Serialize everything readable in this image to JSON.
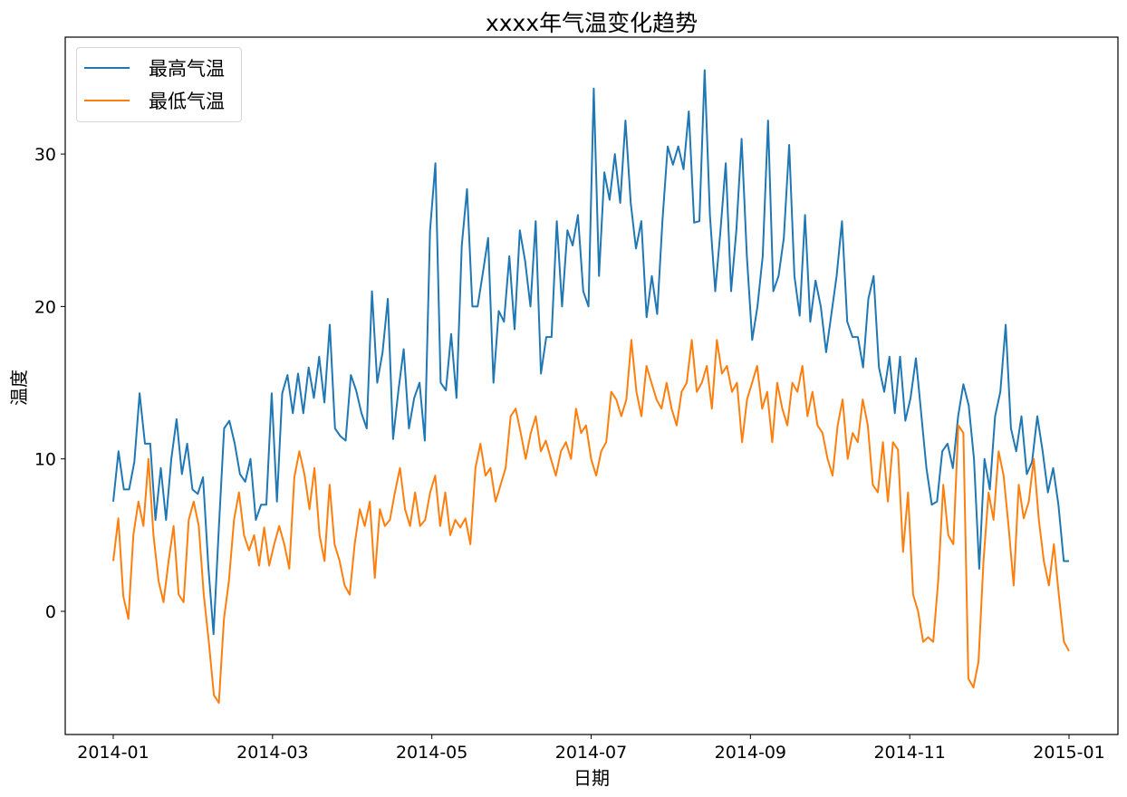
{
  "chart_data": {
    "type": "line",
    "title": "xxxx年气温变化趋势",
    "xlabel": "日期",
    "ylabel": "温度",
    "x_range": [
      "2014-01-01",
      "2014-12-31"
    ],
    "xticks": [
      "2014-01",
      "2014-03",
      "2014-05",
      "2014-07",
      "2014-09",
      "2014-11",
      "2015-01"
    ],
    "yticks": [
      0,
      10,
      20,
      30
    ],
    "ylim": [
      -8.1,
      37.7
    ],
    "grid": false,
    "legend_position": "upper left",
    "series": [
      {
        "name": "最高气温",
        "color": "#1f77b4",
        "values": [
          7.2,
          10.5,
          8,
          8,
          9.8,
          14.3,
          11,
          11,
          6,
          9.4,
          6,
          10,
          12.6,
          9,
          11,
          8,
          7.7,
          8.8,
          3,
          -1.5,
          5.5,
          12,
          12.5,
          11,
          9,
          8.5,
          10,
          6,
          7,
          7,
          14.3,
          7.2,
          14.3,
          15.5,
          13,
          15.6,
          13,
          16,
          14,
          16.7,
          13.7,
          18.8,
          12,
          11.5,
          11.2,
          15.5,
          14.5,
          13,
          12,
          21,
          15,
          17,
          20.5,
          11.3,
          14.5,
          17.2,
          12,
          14,
          15,
          11.2,
          25,
          29.4,
          15,
          14.5,
          18.2,
          14,
          24,
          27.7,
          20,
          20,
          22.2,
          24.5,
          15,
          19.7,
          19,
          23.3,
          18.5,
          25,
          23,
          20,
          25.6,
          15.6,
          18,
          18,
          25.6,
          20,
          25,
          24,
          26,
          21,
          20,
          34.3,
          22,
          28.8,
          27,
          30,
          26.8,
          32.2,
          26.8,
          23.8,
          25.6,
          19.3,
          22,
          19.5,
          25.6,
          30.5,
          29.3,
          30.5,
          29,
          32.8,
          25.5,
          25.6,
          35.5,
          26,
          21,
          25,
          29.4,
          21,
          25,
          31,
          23.3,
          17.8,
          20,
          23.3,
          32.2,
          21,
          22,
          24.5,
          30.6,
          22,
          19.4,
          26,
          19,
          21.7,
          20,
          17,
          19.5,
          22,
          25.6,
          19,
          18,
          18,
          16,
          20.5,
          22,
          16,
          14.4,
          16.7,
          13,
          16.7,
          12.5,
          14,
          16.6,
          13,
          9.4,
          7,
          7.2,
          10.5,
          11,
          9.4,
          12.8,
          14.9,
          13.5,
          10,
          2.8,
          10,
          8,
          12.8,
          14.4,
          18.8,
          12,
          10.5,
          12.8,
          9,
          9.8,
          12.8,
          10.5,
          7.8,
          9.4,
          7,
          3.3,
          3.3
        ]
      },
      {
        "name": "最低气温",
        "color": "#ff7f0e",
        "values": [
          3.3,
          6.1,
          1,
          -0.5,
          5,
          7.2,
          5.6,
          10,
          5,
          2,
          0.6,
          3.3,
          5.6,
          1.1,
          0.6,
          6,
          7.2,
          5.6,
          1.1,
          -2,
          -5.5,
          -6,
          -0.5,
          2,
          6,
          7.8,
          5,
          4,
          5,
          3,
          5.5,
          3,
          4.4,
          5.6,
          4.4,
          2.8,
          8.8,
          10.5,
          9,
          6.7,
          9.4,
          5,
          3.3,
          8.3,
          4.4,
          3.3,
          1.7,
          1.1,
          4.4,
          6.7,
          5.6,
          7.2,
          2.2,
          6.7,
          5.6,
          6,
          7.8,
          9.4,
          6.7,
          5.6,
          7.8,
          5.6,
          6,
          7.8,
          8.9,
          5.6,
          7.8,
          5,
          6,
          5.5,
          6.1,
          4.4,
          9.4,
          11,
          8.9,
          9.4,
          7.2,
          8.3,
          9.4,
          12.8,
          13.3,
          11.7,
          10,
          11.7,
          12.8,
          10.5,
          11.2,
          10,
          8.9,
          10.5,
          11.1,
          10,
          13.3,
          11.7,
          12.2,
          10,
          8.9,
          10.5,
          11.1,
          14.4,
          13.9,
          12.8,
          13.9,
          17.8,
          14.4,
          12.8,
          16.1,
          15,
          13.9,
          13.3,
          15,
          13.3,
          12.2,
          14.4,
          15,
          17.8,
          14.4,
          15,
          16.1,
          13.3,
          17.8,
          15.6,
          16.1,
          14.4,
          15,
          11.1,
          13.9,
          15,
          16.1,
          13.3,
          14.4,
          11.1,
          15,
          13.3,
          12.2,
          15,
          14.4,
          16.1,
          12.8,
          14.4,
          12.2,
          11.7,
          10,
          8.9,
          12.2,
          13.9,
          10,
          11.7,
          11.1,
          13.9,
          12.2,
          8.3,
          7.8,
          11.1,
          7.2,
          11.1,
          10.6,
          3.9,
          7.8,
          1.1,
          0,
          -2,
          -1.7,
          -2,
          2,
          8.3,
          5,
          4.4,
          12.2,
          11.7,
          -4.4,
          -5,
          -3.3,
          3.3,
          7.8,
          6,
          10.5,
          8.9,
          5.5,
          1.7,
          8.3,
          6.1,
          7.2,
          10,
          6,
          3.3,
          1.7,
          4.4,
          1,
          -2,
          -2.6
        ]
      }
    ]
  },
  "legend": {
    "items": [
      {
        "label": "最高气温",
        "color": "#1f77b4"
      },
      {
        "label": "最低气温",
        "color": "#ff7f0e"
      }
    ]
  },
  "axes": {
    "x_tick_labels": [
      "2014-01",
      "2014-03",
      "2014-05",
      "2014-07",
      "2014-09",
      "2014-11",
      "2015-01"
    ],
    "y_tick_labels": [
      "0",
      "10",
      "20",
      "30"
    ],
    "xlabel": "日期",
    "ylabel": "温度"
  },
  "title": "xxxx年气温变化趋势"
}
